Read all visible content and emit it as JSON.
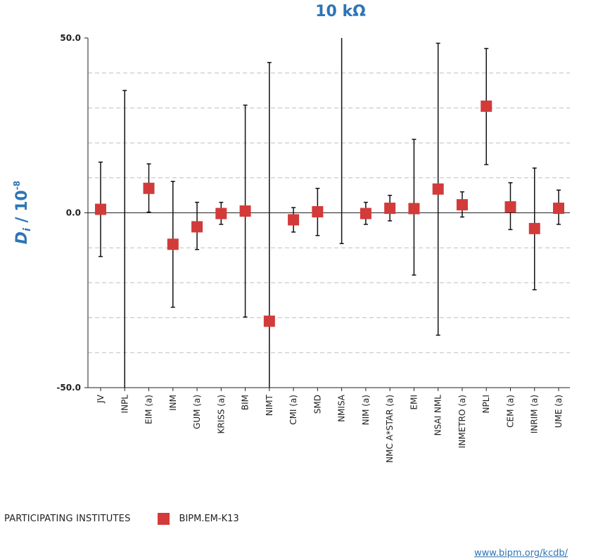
{
  "chart_data": {
    "type": "scatter",
    "title": "10 kΩ",
    "ylabel_main": "D",
    "ylabel_sub": "i",
    "ylabel_unit": " / 10",
    "ylabel_exp": "-8",
    "ylim": [
      -50,
      50
    ],
    "yticks": [
      -50,
      0,
      50
    ],
    "ytick_labels": [
      "-50.0",
      "0.0",
      "50.0"
    ],
    "grid_lines": [
      -40,
      -30,
      -20,
      -10,
      10,
      20,
      30,
      40
    ],
    "categories": [
      "JV",
      "INPL",
      "EIM (a)",
      "INM",
      "GUM (a)",
      "KRISS (a)",
      "BIM",
      "NIMT",
      "CMI (a)",
      "SMD",
      "NMISA",
      "NIM (a)",
      "NMC A*STAR (a)",
      "EMI",
      "NSAI NML",
      "INMETRO (a)",
      "NPLI",
      "CEM (a)",
      "INRIM (a)",
      "UME (a)"
    ],
    "values": [
      1.0,
      null,
      7.0,
      -9.0,
      -4.0,
      -0.2,
      0.5,
      -31.0,
      -2.0,
      0.3,
      null,
      -0.2,
      1.3,
      1.2,
      6.8,
      2.3,
      30.5,
      1.7,
      -4.5,
      1.3
    ],
    "upper": [
      14.5,
      35.0,
      14.0,
      9.0,
      3.0,
      3.0,
      30.8,
      43.0,
      1.5,
      7.0,
      50.0,
      3.0,
      5.0,
      21.0,
      48.5,
      6.0,
      47.0,
      8.6,
      12.8,
      6.5
    ],
    "lower": [
      -12.5,
      -50.0,
      0.2,
      -27.0,
      -10.5,
      -3.3,
      -29.8,
      -50.0,
      -5.5,
      -6.5,
      -8.8,
      -3.3,
      -2.3,
      -17.8,
      -35.0,
      -1.2,
      13.8,
      -4.8,
      -22.0,
      -3.3
    ],
    "series_name": "BIPM.EM-K13",
    "marker_color": "#d33a3a"
  },
  "legend": {
    "title": "PARTICIPATING INSTITUTES",
    "entry": "BIPM.EM-K13"
  },
  "footer": {
    "link": "www.bipm.org/kcdb/"
  }
}
